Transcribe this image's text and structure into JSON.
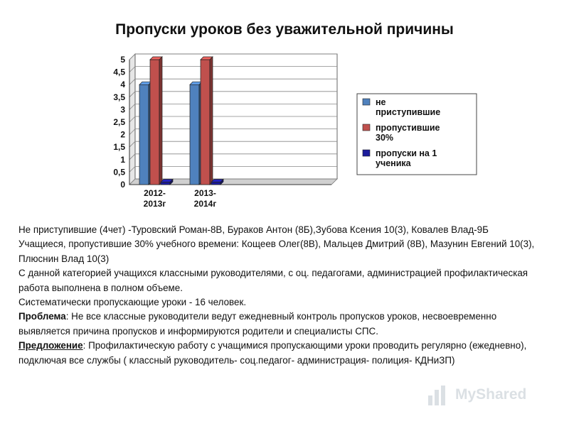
{
  "title": "Пропуски уроков без уважительной причины",
  "chart_data": {
    "type": "bar",
    "categories": [
      "2012-\n2013г",
      "2013-\n2014г",
      "",
      ""
    ],
    "series": [
      {
        "name": "не\nприступившие",
        "values": [
          4,
          4,
          null,
          null
        ],
        "color": "#4f81bd"
      },
      {
        "name": "пропустившие\n30%",
        "values": [
          5,
          5,
          null,
          null
        ],
        "color": "#c0504d"
      },
      {
        "name": "пропуски на 1\nученика",
        "values": [
          0.1,
          0.1,
          null,
          null
        ],
        "color": "#1c1c9c"
      }
    ],
    "ylim": [
      0,
      5
    ],
    "yticks": [
      "0",
      "0,5",
      "1",
      "1,5",
      "2",
      "2,5",
      "3",
      "3,5",
      "4",
      "4,5",
      "5"
    ],
    "grid": true,
    "legend": "right"
  },
  "text": {
    "p1": "Не приступившие (4чет) -Туровский Роман-8В, Бураков Антон (8Б),Зубова Ксения 10(3), Ковалев Влад-9Б",
    "p2": "Учащиеся, пропустившие 30% учебного времени: Кощеев Олег(8В), Мальцев Дмитрий (8В), Мазунин Евгений 10(3), Плюснин Влад 10(3)",
    "p3": "С данной категорией учащихся классными руководителями, с оц. педагогами, администрацией профилактическая работа выполнена в полном объеме.",
    "p4": "Систематически пропускающие уроки - 16 человек.",
    "p5_label": "Проблема",
    "p5_text": ": Не все классные руководители ведут ежедневный контроль пропусков уроков, несвоевременно выявляется причина пропусков и информируются родители и специалисты СПС.",
    "p6_label": "Предложение",
    "p6_text": ": Профилактическую работу с учащимися пропускающими уроки проводить регулярно (ежедневно), подключая все службы ( классный руководитель- соц.педагог- администрация- полиция- КДНиЗП)"
  },
  "watermark": {
    "text": "MyShared",
    "icon": "chart-bars-icon"
  }
}
